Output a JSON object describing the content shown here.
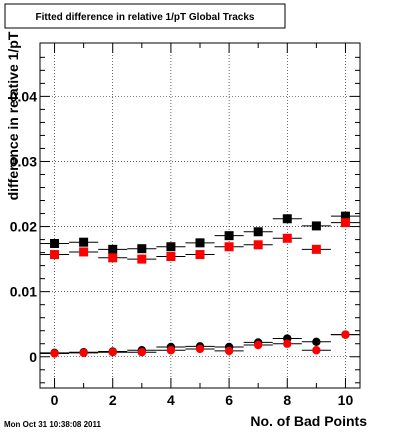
{
  "chart_data": {
    "type": "scatter",
    "title": "Fitted difference in relative 1/pT  Global Tracks",
    "xlabel": "No. of Bad Points",
    "ylabel": "difference in relative 1/pT",
    "timestamp": "Mon Oct 31 10:38:08 2011",
    "xlim": [
      -0.5,
      10.5
    ],
    "ylim": [
      -0.0048,
      0.0482
    ],
    "xticks": [
      0,
      2,
      4,
      6,
      8,
      10
    ],
    "xtick_labels": [
      "0",
      "2",
      "4",
      "6",
      "8",
      "10"
    ],
    "yticks": [
      0,
      0.01,
      0.02,
      0.03,
      0.04
    ],
    "ytick_labels": [
      "0",
      "0.01",
      "0.02",
      "0.03",
      "0.04"
    ],
    "grid": true,
    "x_error": 0.5,
    "series": [
      {
        "marker": "square",
        "color": "#000000",
        "x": [
          0,
          1,
          2,
          3,
          4,
          5,
          6,
          7,
          8,
          9,
          10
        ],
        "y": [
          0.0174,
          0.0176,
          0.0165,
          0.0166,
          0.0169,
          0.0175,
          0.0186,
          0.0192,
          0.0212,
          0.0201,
          0.0216
        ]
      },
      {
        "marker": "square",
        "color": "#ff0000",
        "x": [
          0,
          1,
          2,
          3,
          4,
          5,
          6,
          7,
          8,
          9,
          10
        ],
        "y": [
          0.0157,
          0.0161,
          0.0152,
          0.015,
          0.0154,
          0.0157,
          0.0169,
          0.0172,
          0.0182,
          0.0165,
          0.0206
        ]
      },
      {
        "marker": "circle",
        "color": "#000000",
        "x": [
          0,
          1,
          2,
          3,
          4,
          5,
          6,
          7,
          8,
          9,
          10
        ],
        "y": [
          0.0006,
          0.0007,
          0.0008,
          0.001,
          0.0015,
          0.0016,
          0.0015,
          0.0022,
          0.0028,
          0.0023,
          0.0034
        ]
      },
      {
        "marker": "circle",
        "color": "#ff0000",
        "x": [
          0,
          1,
          2,
          3,
          4,
          5,
          6,
          7,
          8,
          9,
          10
        ],
        "y": [
          0.0005,
          0.0006,
          0.0007,
          0.0007,
          0.001,
          0.0012,
          0.0009,
          0.0018,
          0.002,
          0.001,
          0.0034
        ]
      }
    ]
  }
}
